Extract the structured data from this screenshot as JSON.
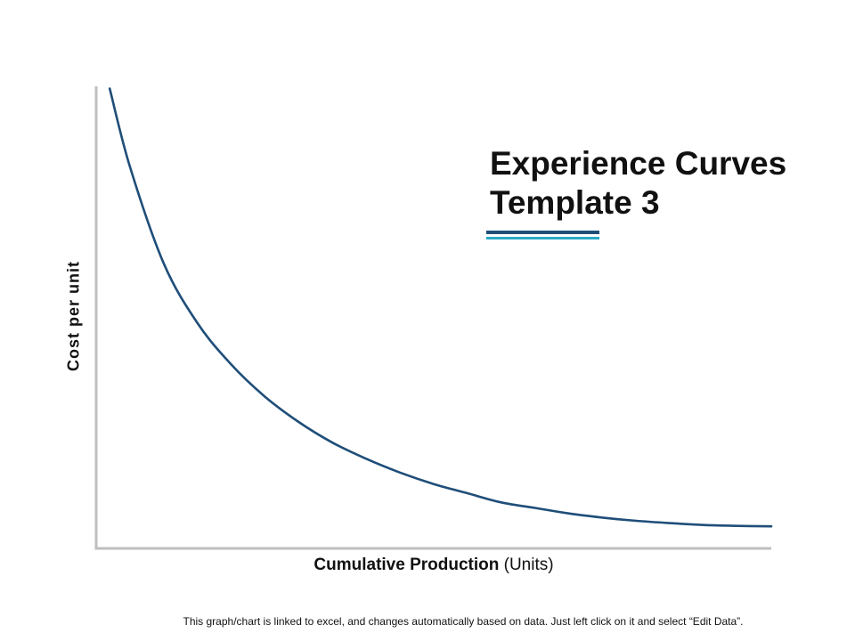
{
  "slide": {
    "title_line1": "Experience Curves",
    "title_line2": "Template 3",
    "footnote": "This graph/chart is linked to excel, and changes automatically based on data. Just left click on it and select “Edit Data”."
  },
  "chart_data": {
    "type": "line",
    "title": "",
    "xlabel_bold": "Cumulative Production",
    "xlabel_rest": " (Units)",
    "ylabel": "Cost per unit",
    "grid": false,
    "legend": "none",
    "series": [
      {
        "color": "#1f4e79",
        "x": [
          0.02,
          0.05,
          0.1,
          0.15,
          0.2,
          0.25,
          0.3,
          0.35,
          0.4,
          0.45,
          0.5,
          0.55,
          0.6,
          0.65,
          0.7,
          0.75,
          0.8,
          0.85,
          0.9,
          0.95,
          1.0
        ],
        "values": [
          1.0,
          0.83,
          0.62,
          0.49,
          0.4,
          0.33,
          0.275,
          0.23,
          0.195,
          0.165,
          0.14,
          0.12,
          0.1,
          0.088,
          0.076,
          0.067,
          0.06,
          0.055,
          0.051,
          0.049,
          0.048
        ]
      }
    ],
    "xlim": [
      0,
      1
    ],
    "ylim": [
      0,
      1.03
    ]
  },
  "colors": {
    "axis": "#bfbfbf",
    "accent_dark": "#1f4e79",
    "accent_light": "#29a8c9"
  }
}
